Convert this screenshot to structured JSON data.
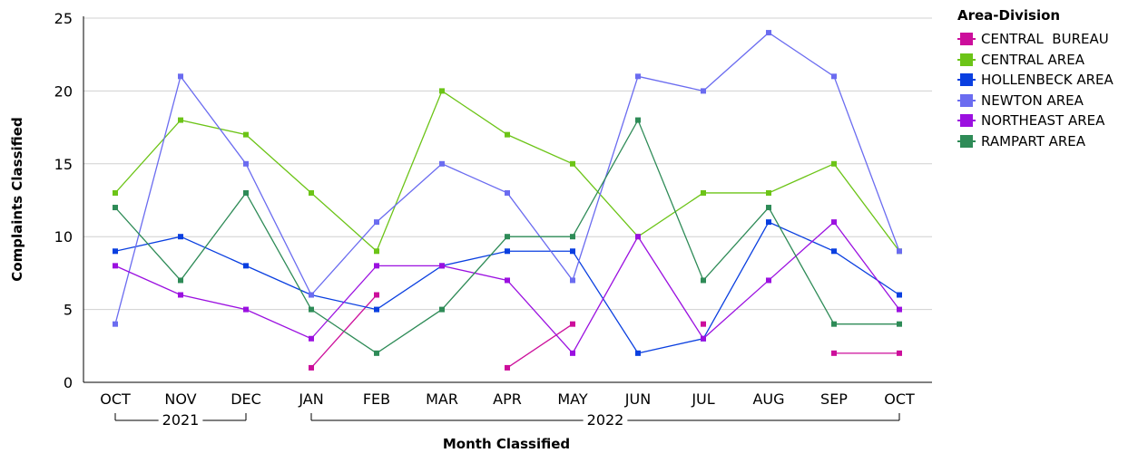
{
  "chart_data": {
    "type": "line",
    "xlabel": "Month Classified",
    "ylabel": "Complaints Classified",
    "categories": [
      "OCT",
      "NOV",
      "DEC",
      "JAN",
      "FEB",
      "MAR",
      "APR",
      "MAY",
      "JUN",
      "JUL",
      "AUG",
      "SEP",
      "OCT"
    ],
    "year_groups": [
      {
        "label": "2021",
        "start": 0,
        "end": 2
      },
      {
        "label": "2022",
        "start": 3,
        "end": 12
      }
    ],
    "ylim": [
      0,
      25
    ],
    "yticks": [
      0,
      5,
      10,
      15,
      20,
      25
    ],
    "grid": true,
    "legend": {
      "title": "Area-Division",
      "placement": "right"
    },
    "series": [
      {
        "name": "CENTRAL  BUREAU",
        "color": "#cc0e9b",
        "values": [
          null,
          null,
          null,
          1,
          6,
          null,
          1,
          4,
          null,
          4,
          null,
          2,
          2
        ]
      },
      {
        "name": "CENTRAL AREA",
        "color": "#6cc417",
        "values": [
          13,
          18,
          17,
          13,
          9,
          20,
          17,
          15,
          10,
          13,
          13,
          15,
          9
        ]
      },
      {
        "name": "HOLLENBECK AREA",
        "color": "#0a3fe0",
        "values": [
          9,
          10,
          8,
          6,
          5,
          8,
          9,
          9,
          2,
          3,
          11,
          9,
          6
        ]
      },
      {
        "name": "NEWTON AREA",
        "color": "#6b6cf0",
        "values": [
          4,
          21,
          15,
          6,
          11,
          15,
          13,
          7,
          21,
          20,
          24,
          21,
          9
        ]
      },
      {
        "name": "NORTHEAST AREA",
        "color": "#9b10e0",
        "values": [
          8,
          6,
          5,
          3,
          8,
          8,
          7,
          2,
          10,
          3,
          7,
          11,
          5
        ]
      },
      {
        "name": "RAMPART AREA",
        "color": "#2e8b57",
        "values": [
          12,
          7,
          13,
          5,
          2,
          5,
          10,
          10,
          18,
          7,
          12,
          4,
          4
        ]
      }
    ]
  }
}
